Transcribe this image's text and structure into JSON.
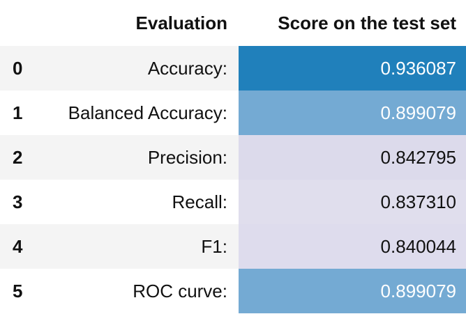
{
  "table": {
    "headers": {
      "index": "",
      "evaluation": "Evaluation",
      "score": "Score on the test set"
    },
    "rows": [
      {
        "index": "0",
        "evaluation": "Accuracy:",
        "score": "0.936087",
        "score_bg": "#2080bb",
        "score_text_color": "#ffffff"
      },
      {
        "index": "1",
        "evaluation": "Balanced Accuracy:",
        "score": "0.899079",
        "score_bg": "#74aad3",
        "score_text_color": "#ffffff"
      },
      {
        "index": "2",
        "evaluation": "Precision:",
        "score": "0.842795",
        "score_bg": "#dcdaeb",
        "score_text_color": "#111111"
      },
      {
        "index": "3",
        "evaluation": "Recall:",
        "score": "0.837310",
        "score_bg": "#e0deed",
        "score_text_color": "#111111"
      },
      {
        "index": "4",
        "evaluation": "F1:",
        "score": "0.840044",
        "score_bg": "#dedced",
        "score_text_color": "#111111"
      },
      {
        "index": "5",
        "evaluation": "ROC curve:",
        "score": "0.899079",
        "score_bg": "#74aad3",
        "score_text_color": "#ffffff"
      }
    ]
  }
}
